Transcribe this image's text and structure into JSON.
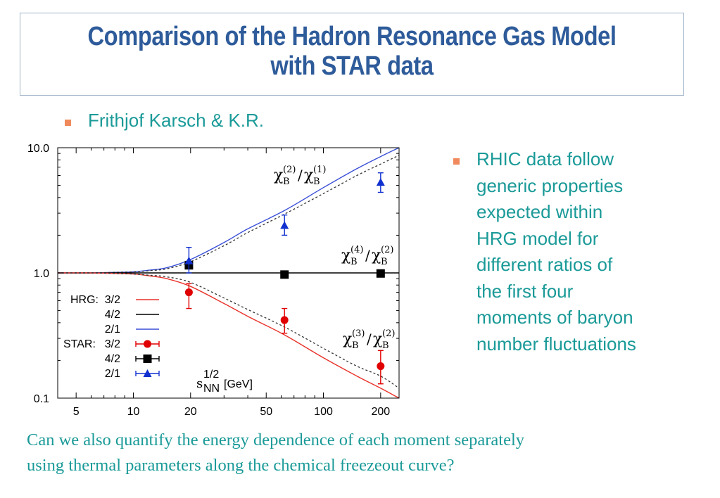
{
  "title": {
    "line1": "Comparison of the Hadron Resonance Gas Model",
    "line2": "with  STAR data"
  },
  "author": "Frithjof Karsch & K.R.",
  "side_text": {
    "lines": [
      "RHIC data follow",
      "generic properties",
      "expected within",
      "HRG model for",
      "different  ratios of",
      "the first four",
      "moments  of baryon",
      "number fluctuations"
    ]
  },
  "footer": {
    "line1": "Can we also quantify  the energy dependence  of each moment separately",
    "line2": "using thermal  parameters along the chemical freezeout curve?"
  },
  "colors": {
    "title": "#2e5b9a",
    "teal_text": "#1a9a98",
    "bullet": "#f08a5c",
    "hrg_32": "#e8322a",
    "hrg_42": "#000000",
    "hrg_21": "#3a4fd8",
    "star_32": "#e00000",
    "star_42": "#000000",
    "star_21": "#1030d0"
  },
  "icons": {
    "bullet": "square-bullet-icon"
  },
  "chart_data": {
    "type": "line",
    "title": "",
    "xlabel": "s_NN^{1/2} [GeV]",
    "ylabel": "",
    "x_scale": "log",
    "y_scale": "log",
    "xlim": [
      4,
      250
    ],
    "ylim": [
      0.1,
      10
    ],
    "x_ticks": [
      5,
      10,
      20,
      50,
      100,
      200
    ],
    "x_tick_labels": [
      "5",
      "10",
      "20",
      "50",
      "100",
      "200"
    ],
    "y_ticks": [
      0.1,
      1.0,
      10.0
    ],
    "y_tick_labels": [
      "0.1",
      "1.0",
      "10.0"
    ],
    "grid": false,
    "legend_position": "bottom-left",
    "legend": {
      "hrg_prefix": "HRG:",
      "star_prefix": "STAR:",
      "entries": [
        {
          "key": "hrg_32",
          "label": "3/2",
          "kind": "line"
        },
        {
          "key": "hrg_42",
          "label": "4/2",
          "kind": "line"
        },
        {
          "key": "hrg_21",
          "label": "2/1",
          "kind": "line"
        },
        {
          "key": "star_32",
          "label": "3/2",
          "kind": "circle"
        },
        {
          "key": "star_42",
          "label": "4/2",
          "kind": "square"
        },
        {
          "key": "star_21",
          "label": "2/1",
          "kind": "triangle"
        }
      ]
    },
    "annotations": {
      "ratio_21": {
        "base": "χ",
        "sub": "B",
        "num": "(2)",
        "den": "(1)"
      },
      "ratio_42": {
        "base": "χ",
        "sub": "B",
        "num": "(4)",
        "den": "(2)"
      },
      "ratio_32": {
        "base": "χ",
        "sub": "B",
        "num": "(3)",
        "den": "(2)"
      },
      "x_axis": {
        "base": "s",
        "sub": "NN",
        "sup": "1/2",
        "unit": "[GeV]"
      }
    },
    "series": [
      {
        "key": "hrg_21",
        "style": "solid",
        "x": [
          4,
          6,
          8,
          10,
          12,
          15,
          20,
          30,
          40,
          62.4,
          100,
          150,
          200,
          250
        ],
        "y": [
          1.0,
          1.0,
          1.01,
          1.02,
          1.05,
          1.1,
          1.28,
          1.75,
          2.25,
          3.15,
          4.8,
          6.8,
          8.5,
          10.0
        ]
      },
      {
        "key": "hrg_21_dotted",
        "style": "dotted",
        "x": [
          4,
          6,
          8,
          10,
          12,
          15,
          20,
          30,
          40,
          62.4,
          100,
          150,
          200,
          250
        ],
        "y": [
          1.0,
          1.0,
          1.01,
          1.02,
          1.04,
          1.08,
          1.23,
          1.65,
          2.1,
          2.95,
          4.3,
          6.0,
          7.4,
          8.7
        ]
      },
      {
        "key": "hrg_42",
        "style": "solid",
        "x": [
          4,
          250
        ],
        "y": [
          1.0,
          1.0
        ]
      },
      {
        "key": "hrg_32",
        "style": "solid",
        "x": [
          4,
          6,
          8,
          10,
          12,
          15,
          20,
          30,
          40,
          62.4,
          100,
          150,
          200,
          250
        ],
        "y": [
          1.0,
          1.0,
          0.99,
          0.98,
          0.95,
          0.9,
          0.78,
          0.57,
          0.45,
          0.32,
          0.21,
          0.15,
          0.12,
          0.1
        ]
      },
      {
        "key": "hrg_32_dotted",
        "style": "dotted",
        "x": [
          4,
          6,
          8,
          10,
          12,
          15,
          20,
          30,
          40,
          62.4,
          100,
          150,
          200,
          250
        ],
        "y": [
          1.0,
          1.0,
          0.99,
          0.98,
          0.96,
          0.93,
          0.84,
          0.63,
          0.51,
          0.37,
          0.25,
          0.18,
          0.15,
          0.12
        ]
      }
    ],
    "data_points": [
      {
        "key": "star_32",
        "marker": "circle",
        "x": 19.6,
        "y": 0.7,
        "err_low": 0.52,
        "err_high": 0.82
      },
      {
        "key": "star_32",
        "marker": "circle",
        "x": 62.4,
        "y": 0.42,
        "err_low": 0.33,
        "err_high": 0.52
      },
      {
        "key": "star_32",
        "marker": "circle",
        "x": 200,
        "y": 0.18,
        "err_low": 0.13,
        "err_high": 0.24
      },
      {
        "key": "star_42",
        "marker": "square",
        "x": 19.6,
        "y": 1.15
      },
      {
        "key": "star_42",
        "marker": "square",
        "x": 62.4,
        "y": 0.97
      },
      {
        "key": "star_42",
        "marker": "square",
        "x": 200,
        "y": 0.99
      },
      {
        "key": "star_21",
        "marker": "triangle",
        "x": 19.6,
        "y": 1.25,
        "err_low": 1.0,
        "err_high": 1.6
      },
      {
        "key": "star_21",
        "marker": "triangle",
        "x": 62.4,
        "y": 2.4,
        "err_low": 2.0,
        "err_high": 2.9
      },
      {
        "key": "star_21",
        "marker": "triangle",
        "x": 200,
        "y": 5.3,
        "err_low": 4.4,
        "err_high": 6.3
      }
    ]
  }
}
